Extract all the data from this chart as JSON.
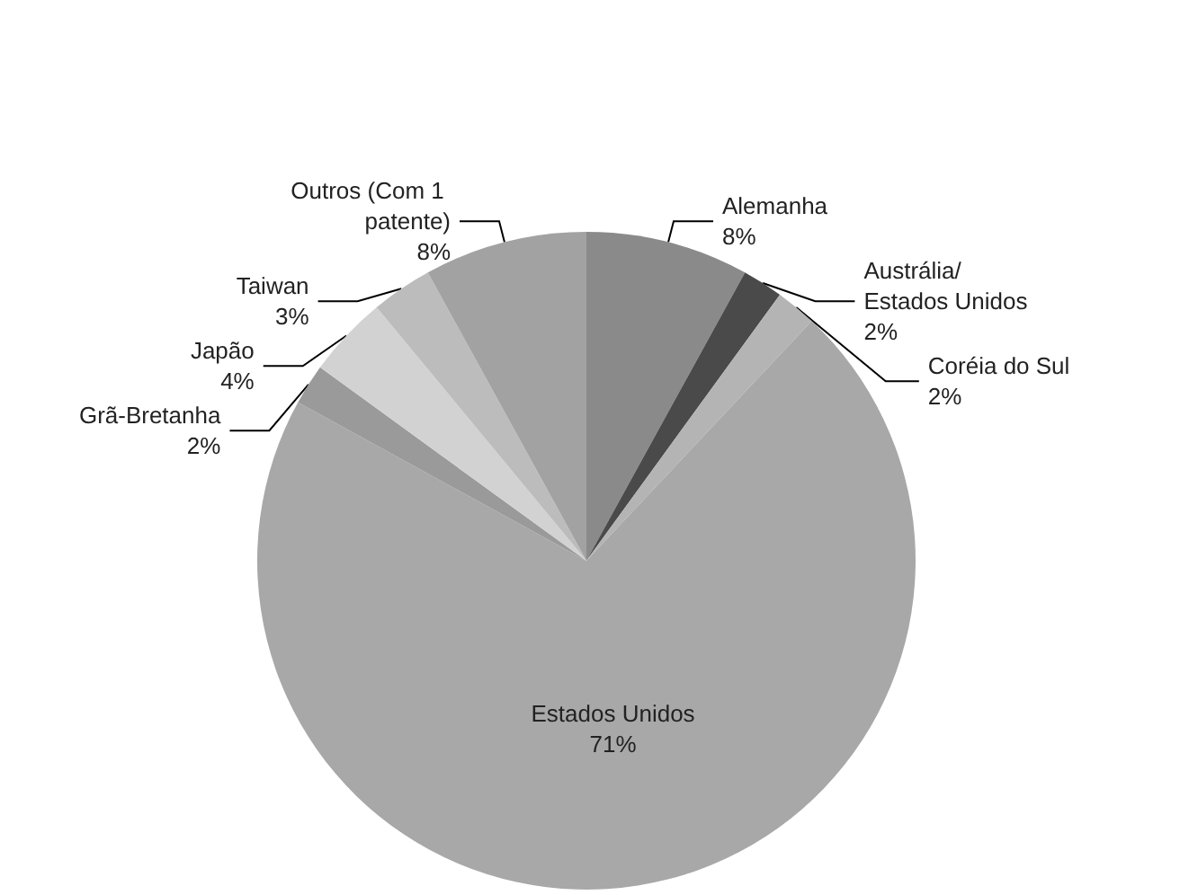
{
  "chart_data": {
    "type": "pie",
    "categories": [
      "Alemanha",
      "Austrália/ Estados Unidos",
      "Coréia do Sul",
      "Estados Unidos",
      "Grã-Bretanha",
      "Japão",
      "Taiwan",
      "Outros (Com 1 patente)"
    ],
    "values": [
      8,
      2,
      2,
      71,
      2,
      4,
      3,
      8
    ],
    "value_labels": [
      "8%",
      "2%",
      "2%",
      "71%",
      "2%",
      "4%",
      "3%",
      "8%"
    ],
    "colors": [
      "#8a8a8a",
      "#4a4a4a",
      "#b4b4b4",
      "#a8a8a8",
      "#9a9a9a",
      "#d2d2d2",
      "#bcbcbc",
      "#a2a2a2"
    ]
  }
}
